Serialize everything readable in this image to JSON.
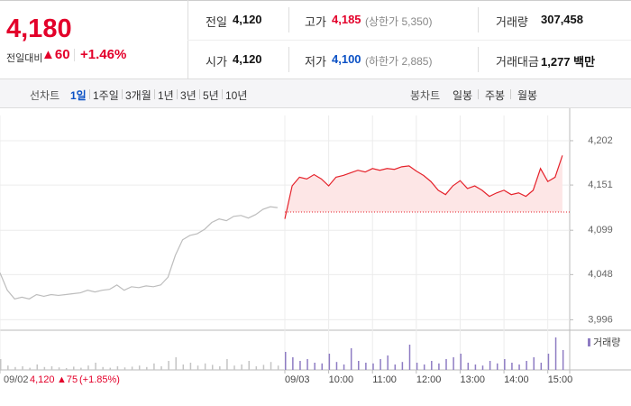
{
  "header": {
    "price": "4,180",
    "change_label": "전일대비",
    "change": "▲60",
    "change_rate": "+1.46%",
    "stats": [
      [
        {
          "label": "전일",
          "value": "4,120"
        },
        {
          "label": "고가",
          "value": "4,185",
          "note": "(상한가 5,350)",
          "color": "#e3002a"
        },
        {
          "label": "거래량",
          "value": "307,458"
        }
      ],
      [
        {
          "label": "시가",
          "value": "4,120"
        },
        {
          "label": "저가",
          "value": "4,100",
          "note": "(하한가 2,885)",
          "color": "#0b51c5"
        },
        {
          "label": "거래대금",
          "value": "1,277 백만"
        }
      ]
    ]
  },
  "tabs": {
    "line_label": "선차트",
    "line_periods": [
      "1일",
      "1주일",
      "3개월",
      "1년",
      "3년",
      "5년",
      "10년"
    ],
    "active": 0,
    "candle_label": "봉차트",
    "candle_periods": [
      "일봉",
      "주봉",
      "월봉"
    ]
  },
  "readout": {
    "date": "09/02",
    "price": "4,120",
    "change": "▲75",
    "rate": "(+1.85%)"
  },
  "chart_data": [
    {
      "type": "line",
      "x": [
        0,
        10,
        20,
        30,
        40,
        50,
        60,
        70,
        80,
        90,
        100,
        110,
        120,
        130,
        140,
        150,
        160,
        170,
        180,
        190,
        200,
        210,
        220,
        230,
        240,
        250,
        260,
        270,
        280,
        290,
        300,
        310,
        320,
        330,
        340,
        350,
        360,
        370,
        380,
        390,
        400,
        410,
        420,
        430,
        440,
        450,
        460,
        470,
        480,
        490,
        500,
        510,
        520,
        530,
        540,
        550,
        560,
        570,
        580,
        590,
        600,
        610,
        620,
        630,
        640,
        650,
        660,
        670,
        680,
        690,
        700,
        710,
        720,
        730,
        740,
        750,
        760,
        770
      ],
      "xlim": [
        0,
        780
      ],
      "xticks": [
        {
          "value": 0,
          "label": "09/02"
        },
        {
          "value": 390,
          "label": "09/03"
        },
        {
          "value": 450,
          "label": "10:00"
        },
        {
          "value": 510,
          "label": "11:00"
        },
        {
          "value": 570,
          "label": "12:00"
        },
        {
          "value": 630,
          "label": "13:00"
        },
        {
          "value": 690,
          "label": "14:00"
        },
        {
          "value": 750,
          "label": "15:00"
        }
      ],
      "ylim": [
        3984,
        4231
      ],
      "yticks": [
        {
          "value": 3996,
          "label": "3,996"
        },
        {
          "value": 4048,
          "label": "4,048"
        },
        {
          "value": 4099,
          "label": "4,099"
        },
        {
          "value": 4151,
          "label": "4,151"
        },
        {
          "value": 4202,
          "label": "4,202"
        }
      ],
      "grid": true,
      "baseline": 4120,
      "fill": "#fde6e6",
      "series": [
        {
          "color": "#bdbdbd",
          "values": [
            4050,
            4030,
            4020,
            4022,
            4020,
            4025,
            4023,
            4025,
            4024,
            4025,
            4026,
            4027,
            4030,
            4028,
            4030,
            4031,
            4036,
            4030,
            4034,
            4033,
            4035,
            4034,
            4036,
            4045,
            4070,
            4088,
            4093,
            4095,
            4100,
            4108,
            4112,
            4110,
            4115,
            4116,
            4113,
            4117,
            4123,
            4126,
            4125,
            null,
            null,
            null,
            null,
            null,
            null,
            null,
            null,
            null,
            null,
            null,
            null,
            null,
            null,
            null,
            null,
            null,
            null,
            null,
            null,
            null,
            null,
            null,
            null,
            null,
            null,
            null,
            null,
            null,
            null,
            null,
            null,
            null,
            null,
            null,
            null,
            null,
            null,
            null
          ]
        },
        {
          "color": "#e5222b",
          "values": [
            null,
            null,
            null,
            null,
            null,
            null,
            null,
            null,
            null,
            null,
            null,
            null,
            null,
            null,
            null,
            null,
            null,
            null,
            null,
            null,
            null,
            null,
            null,
            null,
            null,
            null,
            null,
            null,
            null,
            null,
            null,
            null,
            null,
            null,
            null,
            null,
            null,
            null,
            null,
            4112,
            4150,
            4160,
            4158,
            4163,
            4158,
            4150,
            4160,
            4162,
            4165,
            4168,
            4166,
            4170,
            4168,
            4170,
            4169,
            4172,
            4173,
            4167,
            4162,
            4155,
            4145,
            4140,
            4150,
            4156,
            4147,
            4150,
            4145,
            4138,
            4142,
            4145,
            4140,
            4142,
            4138,
            4145,
            4170,
            4155,
            4160,
            4185
          ]
        }
      ]
    },
    {
      "type": "bar",
      "x": [
        0,
        10,
        20,
        30,
        40,
        50,
        60,
        70,
        80,
        90,
        100,
        110,
        120,
        130,
        140,
        150,
        160,
        170,
        180,
        190,
        200,
        210,
        220,
        230,
        240,
        250,
        260,
        270,
        280,
        290,
        300,
        310,
        320,
        330,
        340,
        350,
        360,
        370,
        380,
        390,
        400,
        410,
        420,
        430,
        440,
        450,
        460,
        470,
        480,
        490,
        500,
        510,
        520,
        530,
        540,
        550,
        560,
        570,
        580,
        590,
        600,
        610,
        620,
        630,
        640,
        650,
        660,
        670,
        680,
        690,
        700,
        710,
        720,
        730,
        740,
        750,
        760,
        770
      ],
      "xlim": [
        0,
        780
      ],
      "ylim": [
        0,
        100
      ],
      "legend": "top-right",
      "series": [
        {
          "color": "#c4c4c4",
          "values": [
            30,
            12,
            8,
            10,
            6,
            15,
            8,
            10,
            7,
            5,
            9,
            6,
            12,
            20,
            8,
            6,
            10,
            7,
            9,
            12,
            8,
            18,
            10,
            25,
            35,
            15,
            20,
            12,
            18,
            14,
            10,
            30,
            12,
            15,
            25,
            10,
            14,
            22,
            12,
            null,
            null,
            null,
            null,
            null,
            null,
            null,
            null,
            null,
            null,
            null,
            null,
            null,
            null,
            null,
            null,
            null,
            null,
            null,
            null,
            null,
            null,
            null,
            null,
            null,
            null,
            null,
            null,
            null,
            null,
            null,
            null,
            null,
            null,
            null,
            null,
            null,
            null,
            null
          ]
        },
        {
          "name": "거래량",
          "color": "#8e7cc3",
          "values": [
            null,
            null,
            null,
            null,
            null,
            null,
            null,
            null,
            null,
            null,
            null,
            null,
            null,
            null,
            null,
            null,
            null,
            null,
            null,
            null,
            null,
            null,
            null,
            null,
            null,
            null,
            null,
            null,
            null,
            null,
            null,
            null,
            null,
            null,
            null,
            null,
            null,
            null,
            null,
            50,
            35,
            25,
            30,
            20,
            18,
            45,
            22,
            15,
            60,
            25,
            20,
            18,
            30,
            40,
            15,
            22,
            70,
            20,
            15,
            25,
            18,
            30,
            35,
            45,
            20,
            15,
            12,
            25,
            18,
            30,
            20,
            15,
            25,
            35,
            20,
            45,
            90,
            55
          ]
        }
      ]
    }
  ]
}
